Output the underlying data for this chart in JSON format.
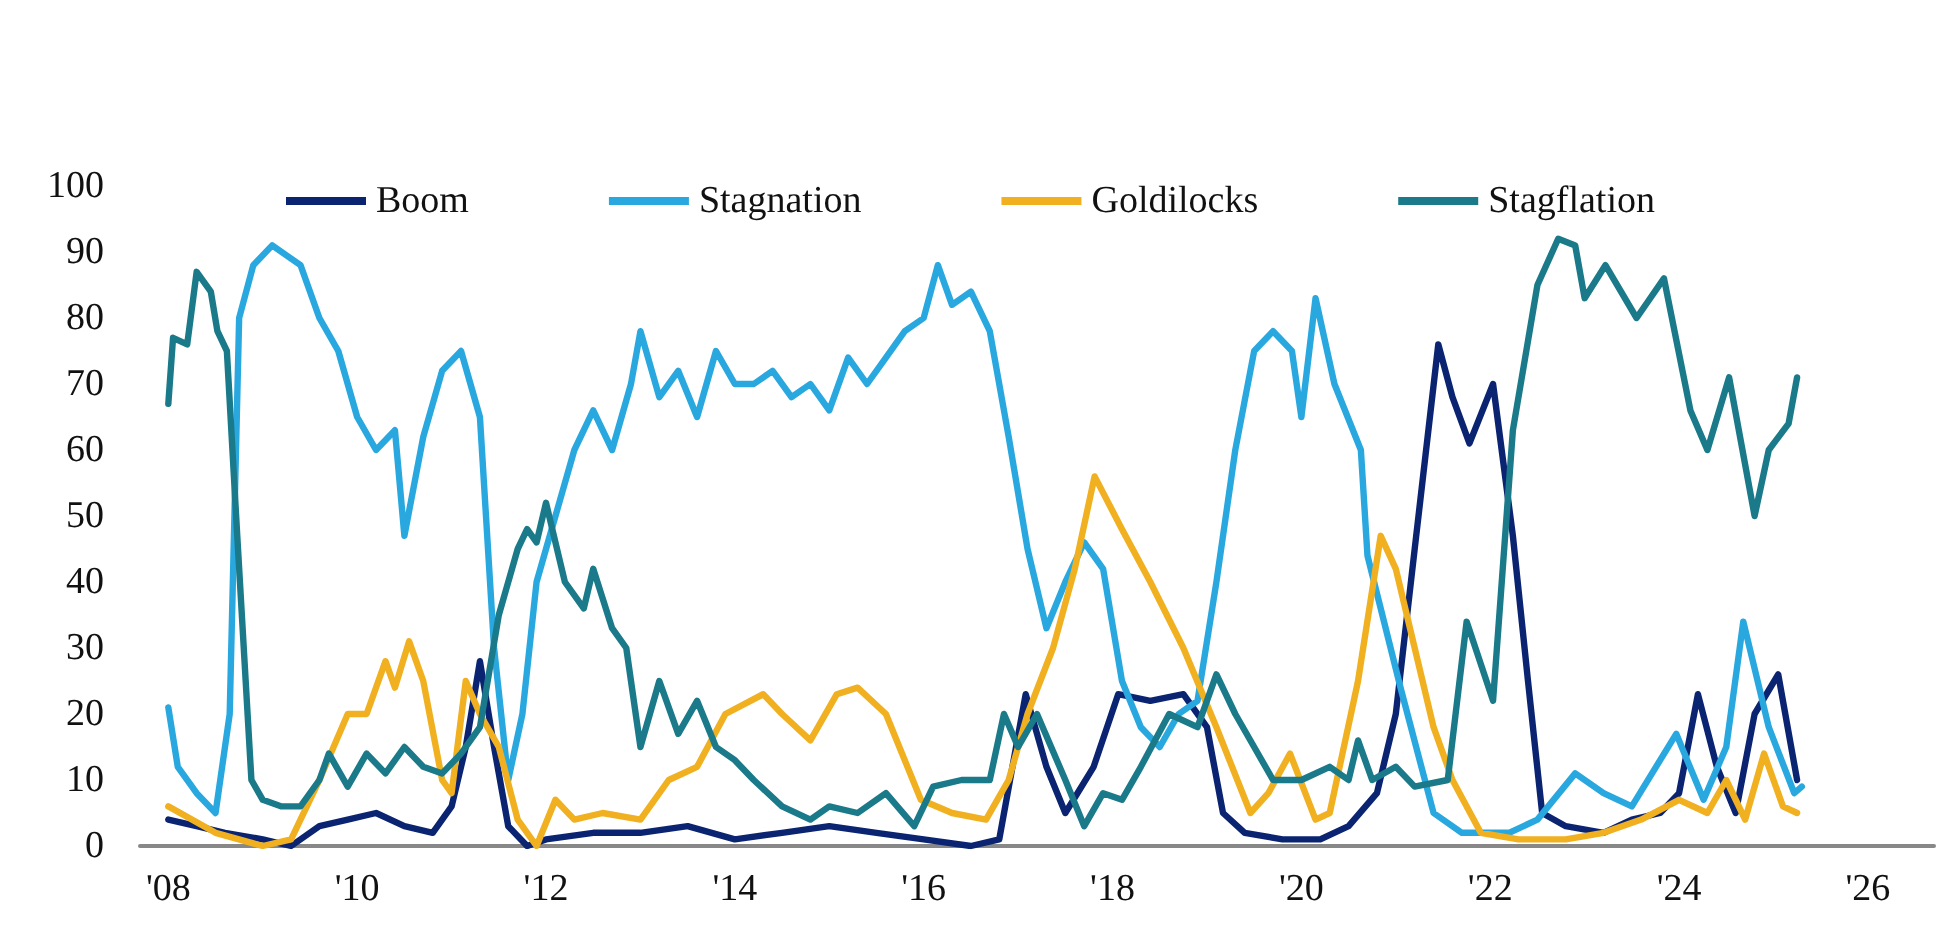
{
  "chart_data": {
    "type": "line",
    "legend": "top",
    "marker": "none",
    "line_style": "solid",
    "grid": false,
    "xlim": [
      2007.7,
      2026.7
    ],
    "xticks": [
      {
        "value": 2008,
        "label": "'08"
      },
      {
        "value": 2010,
        "label": "'10"
      },
      {
        "value": 2012,
        "label": "'12"
      },
      {
        "value": 2014,
        "label": "'14"
      },
      {
        "value": 2016,
        "label": "'16"
      },
      {
        "value": 2018,
        "label": "'18"
      },
      {
        "value": 2020,
        "label": "'20"
      },
      {
        "value": 2022,
        "label": "'22"
      },
      {
        "value": 2024,
        "label": "'24"
      },
      {
        "value": 2026,
        "label": "'26"
      }
    ],
    "ylim": [
      0,
      100
    ],
    "yticks": [
      0,
      10,
      20,
      30,
      40,
      50,
      60,
      70,
      80,
      90,
      100
    ],
    "series": [
      {
        "name": "Boom",
        "color": "#0a2472",
        "x": [
          2008.0,
          2008.3,
          2008.6,
          2009.0,
          2009.3,
          2009.6,
          2009.9,
          2010.2,
          2010.5,
          2010.8,
          2011.0,
          2011.15,
          2011.3,
          2011.45,
          2011.6,
          2011.8,
          2012.0,
          2012.5,
          2013.0,
          2013.5,
          2014.0,
          2014.5,
          2015.0,
          2015.5,
          2016.0,
          2016.5,
          2016.8,
          2017.08,
          2017.3,
          2017.5,
          2017.8,
          2018.06,
          2018.4,
          2018.75,
          2019.0,
          2019.17,
          2019.4,
          2019.8,
          2020.2,
          2020.5,
          2020.8,
          2021.0,
          2021.2,
          2021.45,
          2021.6,
          2021.78,
          2022.03,
          2022.24,
          2022.4,
          2022.55,
          2022.8,
          2023.2,
          2023.5,
          2023.8,
          2024.0,
          2024.2,
          2024.4,
          2024.6,
          2024.8,
          2025.05,
          2025.25
        ],
        "values": [
          4,
          3,
          2,
          1,
          0,
          3,
          4,
          5,
          3,
          2,
          6,
          15,
          28,
          15,
          3,
          0,
          1,
          2,
          2,
          3,
          1,
          2,
          3,
          2,
          1,
          0,
          1,
          23,
          12,
          5,
          12,
          23,
          22,
          23,
          18,
          5,
          2,
          1,
          1,
          3,
          8,
          20,
          45,
          76,
          68,
          61,
          70,
          47,
          25,
          5,
          3,
          2,
          4,
          5,
          8,
          23,
          12,
          5,
          20,
          26,
          10
        ]
      },
      {
        "name": "Stagnation",
        "color": "#29a8e0",
        "x": [
          2008.0,
          2008.1,
          2008.3,
          2008.5,
          2008.65,
          2008.75,
          2008.9,
          2009.1,
          2009.4,
          2009.6,
          2009.8,
          2010.0,
          2010.2,
          2010.4,
          2010.5,
          2010.7,
          2010.9,
          2011.1,
          2011.3,
          2011.45,
          2011.6,
          2011.75,
          2011.9,
          2012.1,
          2012.3,
          2012.5,
          2012.7,
          2012.9,
          2013.0,
          2013.2,
          2013.4,
          2013.6,
          2013.8,
          2014.0,
          2014.2,
          2014.4,
          2014.6,
          2014.8,
          2015.0,
          2015.2,
          2015.4,
          2015.6,
          2015.8,
          2016.0,
          2016.15,
          2016.3,
          2016.5,
          2016.7,
          2016.9,
          2017.1,
          2017.3,
          2017.5,
          2017.7,
          2017.9,
          2018.1,
          2018.3,
          2018.5,
          2018.7,
          2018.9,
          2019.1,
          2019.3,
          2019.5,
          2019.7,
          2019.9,
          2020.0,
          2020.15,
          2020.35,
          2020.63,
          2020.7,
          2021.05,
          2021.4,
          2021.7,
          2022.2,
          2022.5,
          2022.9,
          2023.2,
          2023.5,
          2023.97,
          2024.26,
          2024.5,
          2024.68,
          2024.95,
          2025.22,
          2025.3
        ],
        "values": [
          21,
          12,
          8,
          5,
          20,
          80,
          88,
          91,
          88,
          80,
          75,
          65,
          60,
          63,
          47,
          62,
          72,
          75,
          65,
          30,
          10,
          20,
          40,
          50,
          60,
          66,
          60,
          70,
          78,
          68,
          72,
          65,
          75,
          70,
          70,
          72,
          68,
          70,
          66,
          74,
          70,
          74,
          78,
          80,
          88,
          82,
          84,
          78,
          62,
          45,
          33,
          40,
          46,
          42,
          25,
          18,
          15,
          20,
          22,
          40,
          60,
          75,
          78,
          75,
          65,
          83,
          70,
          60,
          44,
          24,
          5,
          2,
          2,
          4,
          11,
          8,
          6,
          17,
          7,
          15,
          34,
          18,
          8,
          9
        ]
      },
      {
        "name": "Goldilocks",
        "color": "#f0b020",
        "x": [
          2008.0,
          2008.5,
          2009.0,
          2009.3,
          2009.6,
          2009.9,
          2010.1,
          2010.3,
          2010.4,
          2010.55,
          2010.7,
          2010.9,
          2011.0,
          2011.15,
          2011.3,
          2011.5,
          2011.7,
          2011.9,
          2012.1,
          2012.3,
          2012.6,
          2013.0,
          2013.3,
          2013.6,
          2013.9,
          2014.3,
          2014.5,
          2014.8,
          2015.08,
          2015.3,
          2015.6,
          2015.97,
          2016.3,
          2016.66,
          2016.9,
          2017.1,
          2017.37,
          2017.6,
          2017.81,
          2018.1,
          2018.4,
          2018.75,
          2019.1,
          2019.46,
          2019.65,
          2019.88,
          2020.15,
          2020.3,
          2020.6,
          2020.84,
          2021.0,
          2021.2,
          2021.4,
          2021.6,
          2021.9,
          2022.3,
          2022.8,
          2023.2,
          2023.6,
          2024.0,
          2024.3,
          2024.5,
          2024.7,
          2024.9,
          2025.1,
          2025.25
        ],
        "values": [
          6,
          2,
          0,
          1,
          10,
          20,
          20,
          28,
          24,
          31,
          25,
          10,
          8,
          25,
          20,
          15,
          4,
          0,
          7,
          4,
          5,
          4,
          10,
          12,
          20,
          23,
          20,
          16,
          23,
          24,
          20,
          7,
          5,
          4,
          10,
          20,
          30,
          42,
          56,
          48,
          40,
          30,
          18,
          5,
          8,
          14,
          4,
          5,
          25,
          47,
          42,
          30,
          18,
          10,
          2,
          1,
          1,
          2,
          4,
          7,
          5,
          10,
          4,
          14,
          6,
          5
        ]
      },
      {
        "name": "Stagflation",
        "color": "#1a7a8a",
        "x": [
          2008.0,
          2008.05,
          2008.2,
          2008.3,
          2008.45,
          2008.52,
          2008.62,
          2008.73,
          2008.88,
          2009.0,
          2009.2,
          2009.4,
          2009.6,
          2009.7,
          2009.9,
          2010.1,
          2010.3,
          2010.5,
          2010.7,
          2010.9,
          2011.1,
          2011.3,
          2011.5,
          2011.7,
          2011.8,
          2011.9,
          2012.0,
          2012.2,
          2012.4,
          2012.5,
          2012.7,
          2012.85,
          2013.0,
          2013.2,
          2013.4,
          2013.6,
          2013.8,
          2014.0,
          2014.2,
          2014.5,
          2014.8,
          2015.0,
          2015.3,
          2015.6,
          2015.9,
          2016.1,
          2016.4,
          2016.7,
          2016.85,
          2017.0,
          2017.2,
          2017.5,
          2017.7,
          2017.9,
          2018.1,
          2018.3,
          2018.6,
          2018.9,
          2019.1,
          2019.3,
          2019.5,
          2019.7,
          2020.0,
          2020.3,
          2020.5,
          2020.6,
          2020.75,
          2021.0,
          2021.2,
          2021.55,
          2021.75,
          2022.03,
          2022.24,
          2022.5,
          2022.72,
          2022.9,
          2023.0,
          2023.22,
          2023.55,
          2023.84,
          2024.12,
          2024.3,
          2024.53,
          2024.8,
          2024.95,
          2025.16,
          2025.25
        ],
        "values": [
          67,
          77,
          76,
          87,
          84,
          78,
          75,
          47,
          10,
          7,
          6,
          6,
          10,
          14,
          9,
          14,
          11,
          15,
          12,
          11,
          14,
          18,
          35,
          45,
          48,
          46,
          52,
          40,
          36,
          42,
          33,
          30,
          15,
          25,
          17,
          22,
          15,
          13,
          10,
          6,
          4,
          6,
          5,
          8,
          3,
          9,
          10,
          10,
          20,
          15,
          20,
          10,
          3,
          8,
          7,
          12,
          20,
          18,
          26,
          20,
          15,
          10,
          10,
          12,
          10,
          16,
          10,
          12,
          9,
          10,
          34,
          22,
          63,
          85,
          92,
          91,
          83,
          88,
          80,
          86,
          66,
          60,
          71,
          50,
          60,
          64,
          71
        ]
      }
    ]
  }
}
